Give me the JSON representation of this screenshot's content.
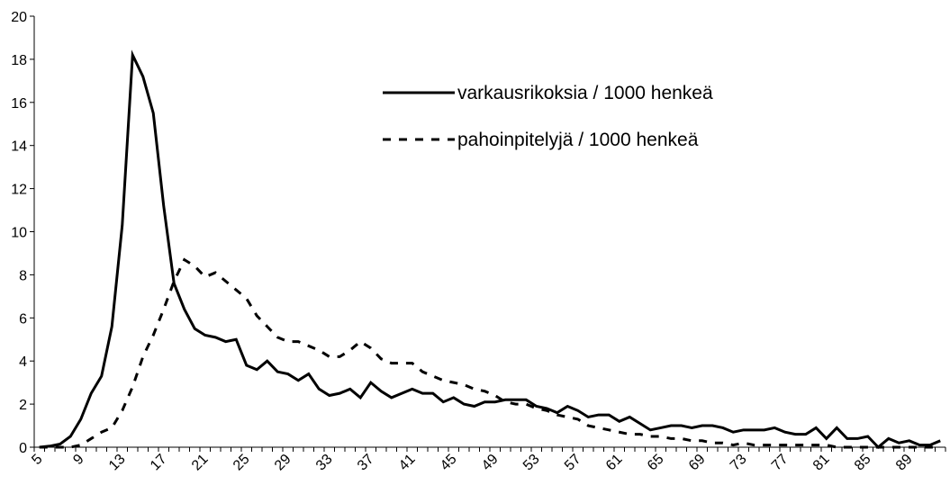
{
  "chart_data": {
    "type": "line",
    "categories": [
      "5",
      null,
      null,
      null,
      "9",
      null,
      null,
      null,
      "13",
      null,
      null,
      null,
      "17",
      null,
      null,
      null,
      "21",
      null,
      null,
      null,
      "25",
      null,
      null,
      null,
      "29",
      null,
      null,
      null,
      "33",
      null,
      null,
      null,
      "37",
      null,
      null,
      null,
      "41",
      null,
      null,
      null,
      "45",
      null,
      null,
      null,
      "49",
      null,
      null,
      null,
      "53",
      null,
      null,
      null,
      "57",
      null,
      null,
      null,
      "61",
      null,
      null,
      null,
      "65",
      null,
      null,
      null,
      "69",
      null,
      null,
      null,
      "73",
      null,
      null,
      null,
      "77",
      null,
      null,
      null,
      "81",
      null,
      null,
      null,
      "85",
      null,
      null,
      null,
      "89",
      null,
      null,
      null
    ],
    "series": [
      {
        "name": "varkausrikoksia / 1000 henkeä",
        "color": "#000000",
        "dash": "solid",
        "values": [
          0,
          0.05,
          0.15,
          0.5,
          1.3,
          2.5,
          3.3,
          5.6,
          10.3,
          18.2,
          17.2,
          15.5,
          11.2,
          7.6,
          6.4,
          5.5,
          5.2,
          5.1,
          4.9,
          5.0,
          3.8,
          3.6,
          4.0,
          3.5,
          3.4,
          3.1,
          3.4,
          2.7,
          2.4,
          2.5,
          2.7,
          2.3,
          3.0,
          2.6,
          2.3,
          2.5,
          2.7,
          2.5,
          2.5,
          2.1,
          2.3,
          2.0,
          1.9,
          2.1,
          2.1,
          2.2,
          2.2,
          2.2,
          1.9,
          1.8,
          1.6,
          1.9,
          1.7,
          1.4,
          1.5,
          1.5,
          1.2,
          1.4,
          1.1,
          0.8,
          0.9,
          1.0,
          1.0,
          0.9,
          1.0,
          1.0,
          0.9,
          0.7,
          0.8,
          0.8,
          0.8,
          0.9,
          0.7,
          0.6,
          0.6,
          0.9,
          0.4,
          0.9,
          0.4,
          0.4,
          0.5,
          0.0,
          0.4,
          0.2,
          0.3,
          0.1,
          0.1,
          0.3
        ]
      },
      {
        "name": "pahoinpitelyjä / 1000 henkeä",
        "color": "#000000",
        "dash": "dashed",
        "values": [
          0,
          0,
          0,
          0,
          0.1,
          0.4,
          0.7,
          0.9,
          1.7,
          2.8,
          4.2,
          5.2,
          6.4,
          7.7,
          8.7,
          8.4,
          7.9,
          8.1,
          7.7,
          7.3,
          6.9,
          6.1,
          5.6,
          5.1,
          4.9,
          4.9,
          4.7,
          4.5,
          4.2,
          4.2,
          4.5,
          4.9,
          4.6,
          4.1,
          3.9,
          3.9,
          3.9,
          3.5,
          3.3,
          3.1,
          3.0,
          2.9,
          2.7,
          2.6,
          2.4,
          2.1,
          2.0,
          2.0,
          1.8,
          1.7,
          1.5,
          1.4,
          1.3,
          1.0,
          0.9,
          0.8,
          0.7,
          0.6,
          0.6,
          0.5,
          0.5,
          0.4,
          0.4,
          0.3,
          0.3,
          0.2,
          0.2,
          0.1,
          0.2,
          0.1,
          0.1,
          0.1,
          0.1,
          0.1,
          0.1,
          0.1,
          0.1,
          0,
          0,
          0,
          0,
          0,
          0,
          0,
          0,
          0,
          0,
          0
        ]
      }
    ],
    "ylim": [
      0,
      20
    ],
    "yticks": [
      0,
      2,
      4,
      6,
      8,
      10,
      12,
      14,
      16,
      18,
      20
    ],
    "grid": false,
    "legend": "top-right"
  }
}
